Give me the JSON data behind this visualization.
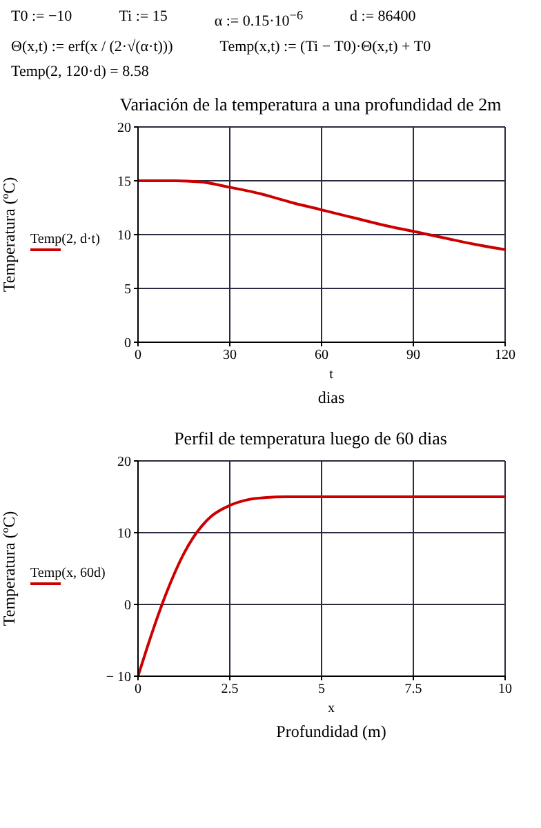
{
  "chart_data": [
    {
      "type": "other",
      "annotations": [
        "T0 := −10",
        "Ti := 15",
        "α := 0.15·10$^{−6}$",
        "d := 86400",
        "Θ(x,t) := erf(x / (2·√(α·t)))",
        "Temp(x,t) := (Ti − T0)·Θ(x,t) + T0",
        "Temp(2, 120·d) = 8.58"
      ]
    },
    {
      "type": "line",
      "title": "Variación de la temperatura a una profundidad de 2m",
      "xlabel": "dias",
      "ylabel": "Temperatura (ºC)",
      "annotations": [
        "t"
      ],
      "xlim": [
        0,
        120
      ],
      "ylim": [
        0,
        20
      ],
      "xticks": [
        0,
        30,
        60,
        90,
        120
      ],
      "yticks": [
        0,
        5,
        10,
        15,
        20
      ],
      "grid": true,
      "legend": "left",
      "x": [
        0,
        10,
        20,
        30,
        40,
        50,
        60,
        70,
        80,
        90,
        100,
        110,
        120
      ],
      "series": [
        {
          "name": "Temp(2, d·t)",
          "color": "#cc0000",
          "values": [
            15,
            15,
            14.9,
            14.4,
            13.8,
            13,
            12.3,
            11.6,
            10.9,
            10.3,
            9.7,
            9.1,
            8.6
          ]
        }
      ]
    },
    {
      "type": "line",
      "title": "Perfil de temperatura luego de 60 dias",
      "xlabel": "Profundidad (m)",
      "ylabel": "Temperatura (ºC)",
      "annotations": [
        "x"
      ],
      "xlim": [
        0,
        10
      ],
      "ylim": [
        -10,
        20
      ],
      "xticks": [
        0,
        2.5,
        5,
        7.5,
        10
      ],
      "yticks": [
        -10,
        0,
        10,
        20
      ],
      "grid": true,
      "legend": "left",
      "x": [
        0,
        0.25,
        0.5,
        0.75,
        1,
        1.25,
        1.5,
        1.75,
        2,
        2.5,
        3,
        3.5,
        4,
        5,
        7.5,
        10
      ],
      "series": [
        {
          "name": "Temp(x, 60d)",
          "color": "#cc0000",
          "values": [
            -10,
            -6,
            -2.2,
            1.3,
            4.4,
            7.1,
            9.3,
            11,
            12.3,
            13.8,
            14.6,
            14.9,
            15,
            15,
            15,
            15
          ]
        }
      ]
    }
  ]
}
